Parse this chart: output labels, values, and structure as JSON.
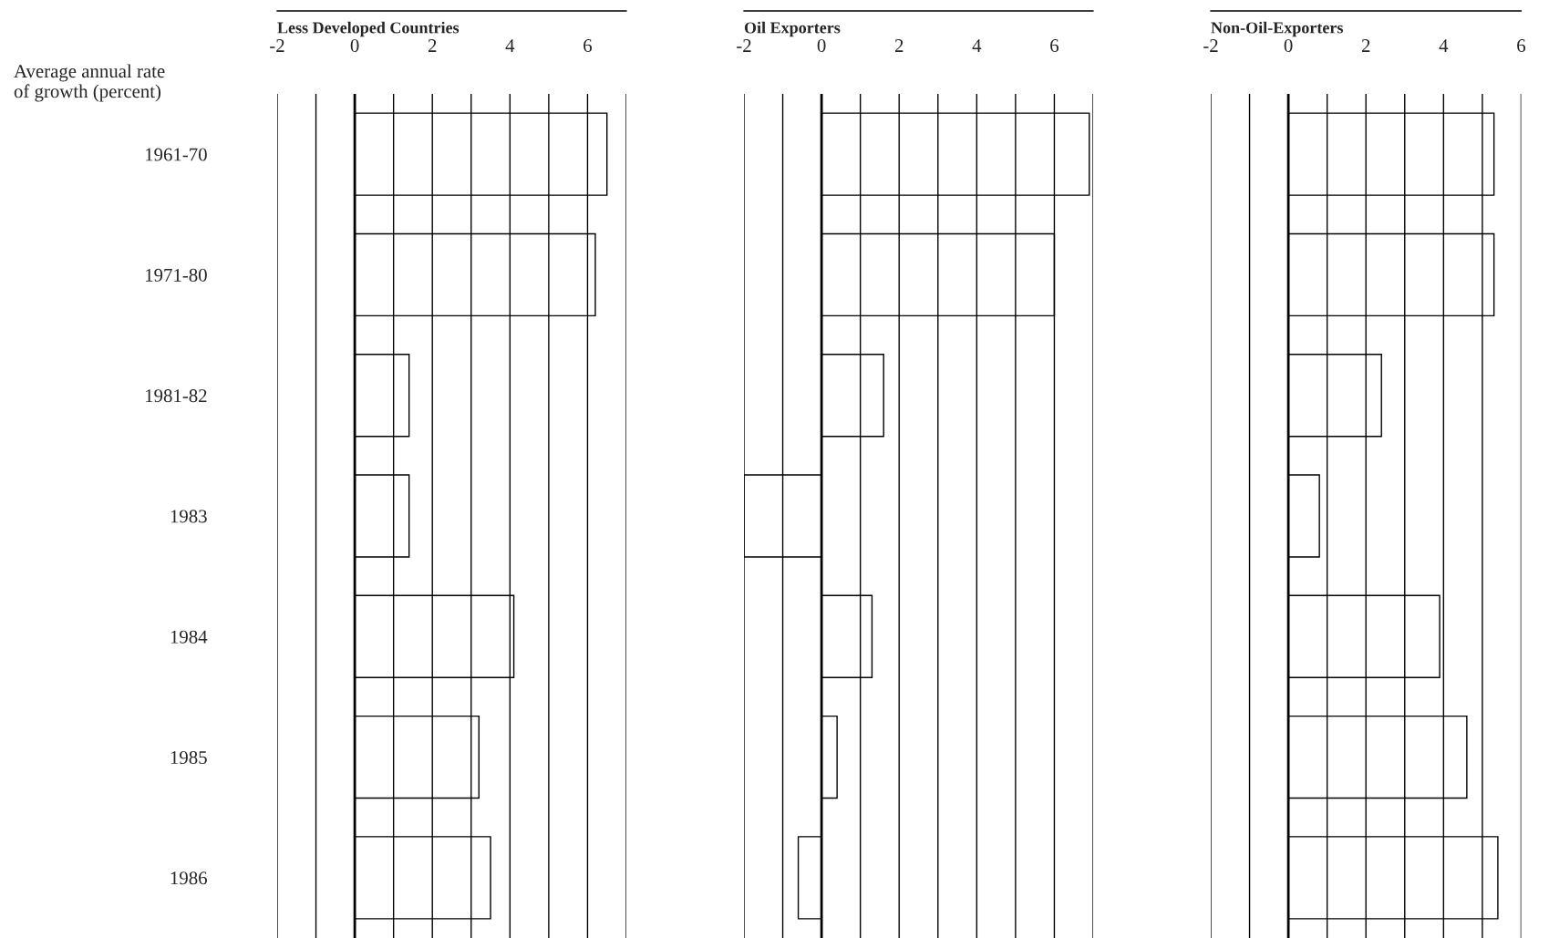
{
  "chart_data": [
    {
      "type": "bar",
      "orientation": "horizontal",
      "title": "Less Developed Countries",
      "ylabel": "Average annual rate\nof growth (percent)",
      "categories": [
        "1961-70",
        "1971-80",
        "1981-82",
        "1983",
        "1984",
        "1985",
        "1986"
      ],
      "values": [
        6.5,
        6.2,
        1.4,
        1.4,
        4.1,
        3.2,
        3.5
      ],
      "color": "#000000",
      "xlim": [
        -2,
        7
      ],
      "xticks": [
        -2,
        {
          "value": -1,
          "label": null
        },
        0,
        {
          "value": 1,
          "label": null
        },
        2,
        {
          "value": 3,
          "label": null
        },
        4,
        {
          "value": 5,
          "label": null
        },
        6,
        {
          "value": 7,
          "label": null
        }
      ],
      "grid": "x"
    },
    {
      "type": "bar",
      "orientation": "horizontal",
      "title": "Oil Exporters",
      "categories": [
        "1961-70",
        "1971-80",
        "1981-82",
        "1983",
        "1984",
        "1985",
        "1986"
      ],
      "values": [
        6.9,
        6.0,
        1.6,
        -2.0,
        1.3,
        0.4,
        -0.6
      ],
      "color": "#000000",
      "xlim": [
        -2,
        7
      ],
      "xticks": [
        -2,
        {
          "value": -1,
          "label": null
        },
        0,
        {
          "value": 1,
          "label": null
        },
        2,
        {
          "value": 3,
          "label": null
        },
        4,
        {
          "value": 5,
          "label": null
        },
        6,
        {
          "value": 7,
          "label": null
        }
      ],
      "grid": "x",
      "tick_labels": "x"
    },
    {
      "type": "bar",
      "orientation": "horizontal",
      "title": "Non-Oil-Exporters",
      "categories": [
        "1961-70",
        "1971-80",
        "1981-82",
        "1983",
        "1984",
        "1985",
        "1986"
      ],
      "values": [
        5.3,
        5.3,
        2.4,
        0.8,
        3.9,
        4.6,
        5.4
      ],
      "color": "#000000",
      "xlim": [
        -2,
        6
      ],
      "xticks": [
        -2,
        {
          "value": -1,
          "label": null
        },
        0,
        {
          "value": 1,
          "label": null
        },
        2,
        {
          "value": 3,
          "label": null
        },
        4,
        {
          "value": 5,
          "label": null
        },
        6
      ],
      "grid": "x",
      "tick_labels": "x"
    }
  ]
}
